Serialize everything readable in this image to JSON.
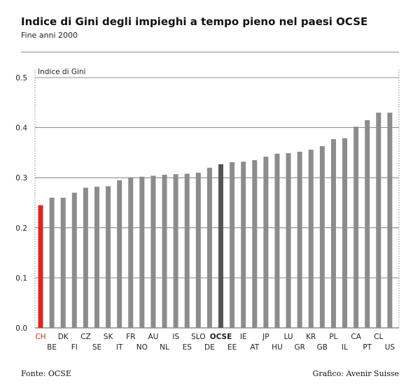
{
  "header": {
    "title": "Indice di Gini degli impieghi a tempo pieno nel paesi OCSE",
    "subtitle": "Fine anni 2000"
  },
  "footer": {
    "source": "Fonte: OCSE",
    "credit": "Grafico: Avenir Suisse"
  },
  "colors": {
    "highlight": "#e0261c",
    "average": "#555555",
    "bar": "#8c8c8c"
  },
  "chart_data": {
    "type": "bar",
    "ylabel": "Indice di Gini",
    "ylim": [
      0,
      0.5
    ],
    "yticks": [
      "0.0",
      "0.1",
      "0.2",
      "0.3",
      "0.4",
      "0.5"
    ],
    "grid": true,
    "categories": [
      "CH",
      "BE",
      "DK",
      "FI",
      "CZ",
      "SE",
      "SK",
      "IT",
      "FR",
      "NO",
      "AU",
      "NL",
      "IS",
      "ES",
      "SLO",
      "DE",
      "OCSE",
      "EE",
      "IE",
      "AT",
      "JP",
      "HU",
      "LU",
      "GR",
      "KR",
      "GB",
      "PL",
      "IL",
      "CA",
      "PT",
      "CL",
      "US"
    ],
    "values": [
      0.245,
      0.26,
      0.26,
      0.27,
      0.28,
      0.282,
      0.283,
      0.295,
      0.3,
      0.302,
      0.304,
      0.306,
      0.307,
      0.308,
      0.31,
      0.32,
      0.327,
      0.331,
      0.332,
      0.335,
      0.342,
      0.348,
      0.349,
      0.352,
      0.356,
      0.363,
      0.377,
      0.379,
      0.402,
      0.415,
      0.43,
      0.43
    ],
    "highlight": "CH",
    "average": "OCSE"
  }
}
